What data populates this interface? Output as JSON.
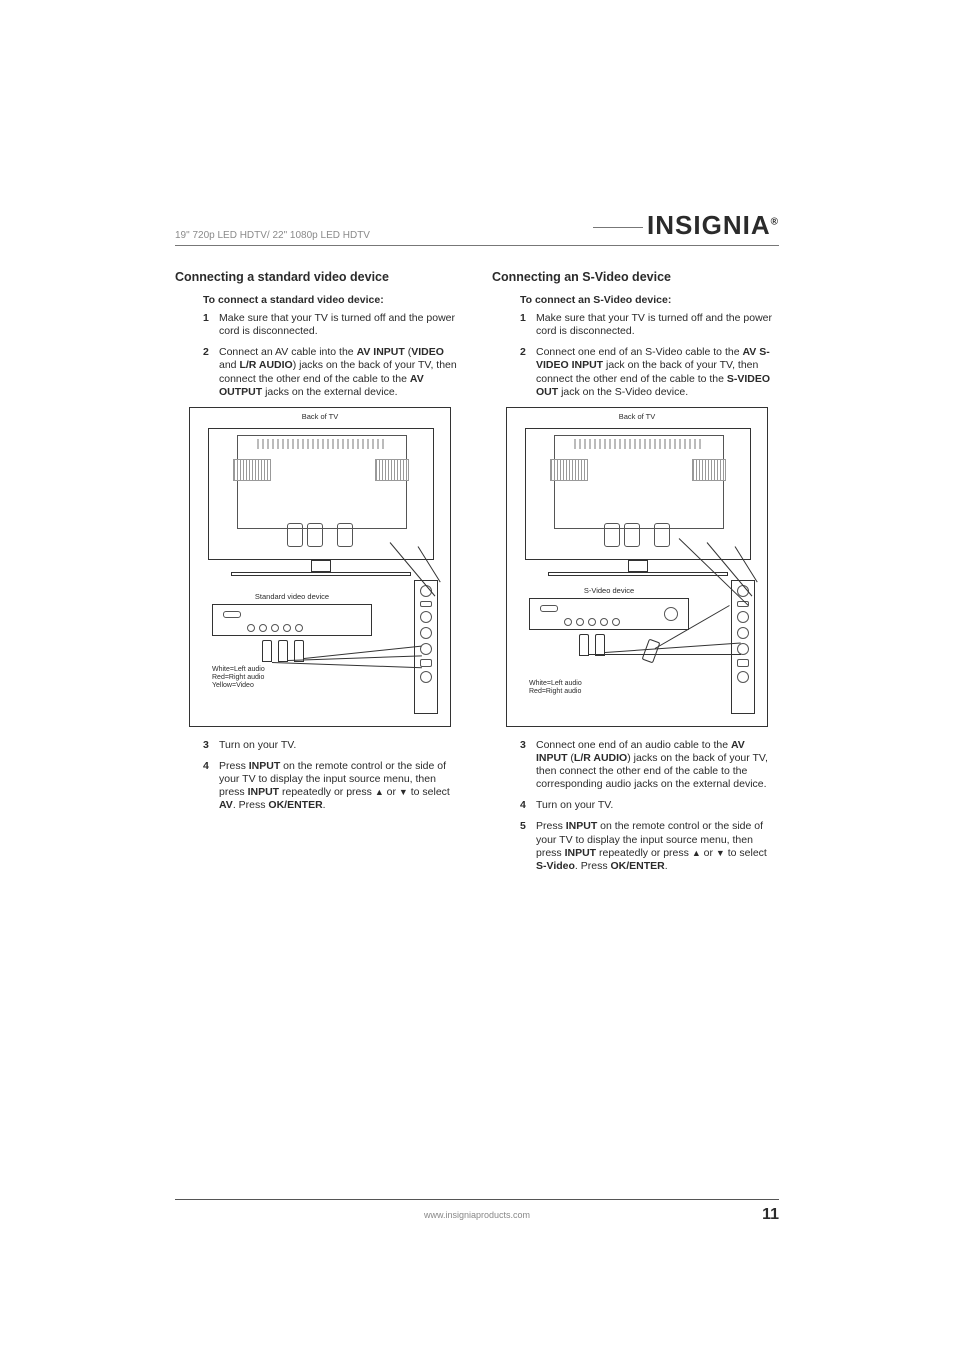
{
  "header": {
    "left": "19\" 720p LED HDTV/ 22\" 1080p LED HDTV",
    "brand": "INSIGNIA"
  },
  "left_column": {
    "title": "Connecting a standard video device",
    "subtitle": "To connect a standard video device:",
    "steps": [
      {
        "num": "1",
        "text": "Make sure that your TV is turned off and the power cord is disconnected."
      },
      {
        "num": "2",
        "parts": [
          "Connect an AV cable into the ",
          {
            "bold": "AV INPUT"
          },
          " (",
          {
            "bold": "VIDEO"
          },
          " and ",
          {
            "bold": "L/R AUDIO"
          },
          ") jacks on the back of your TV, then connect the other end of the cable to the ",
          {
            "bold": "AV OUTPUT"
          },
          " jacks on the external device."
        ]
      }
    ],
    "steps_after": [
      {
        "num": "3",
        "text": "Turn on your TV."
      },
      {
        "num": "4",
        "parts": [
          "Press ",
          {
            "bold": "INPUT"
          },
          " on the remote control or the side of your TV to display the input source menu, then press ",
          {
            "bold": "INPUT"
          },
          " repeatedly or press ",
          {
            "arrow": "▲"
          },
          " or ",
          {
            "arrow": "▼"
          },
          " to select ",
          {
            "bold": "AV"
          },
          ". Press ",
          {
            "bold": "OK/ENTER"
          },
          "."
        ]
      }
    ],
    "diagram": {
      "caption": "Back of TV",
      "device_label": "Standard video device",
      "cable_note": "White=Left audio\nRed=Right audio\nYellow=Video"
    }
  },
  "right_column": {
    "title": "Connecting an S-Video device",
    "subtitle": "To connect an S-Video device:",
    "steps": [
      {
        "num": "1",
        "text": "Make sure that your TV is turned off and the power cord is disconnected."
      },
      {
        "num": "2",
        "parts": [
          "Connect one end of an S-Video cable to the ",
          {
            "bold": "AV S-VIDEO INPUT"
          },
          " jack on the back of your TV, then connect the other end of the cable to the ",
          {
            "bold": "S-VIDEO OUT"
          },
          " jack on the S-Video device."
        ]
      }
    ],
    "steps_after": [
      {
        "num": "3",
        "parts": [
          "Connect one end of an audio cable to the ",
          {
            "bold": "AV INPUT"
          },
          " (",
          {
            "bold": "L/R AUDIO"
          },
          ") jacks on the back of your TV, then connect the other end of the cable to the corresponding audio jacks on the external device."
        ]
      },
      {
        "num": "4",
        "text": "Turn on your TV."
      },
      {
        "num": "5",
        "parts": [
          "Press ",
          {
            "bold": "INPUT"
          },
          " on the remote control or the side of your TV to display the input source menu, then press ",
          {
            "bold": "INPUT"
          },
          " repeatedly or press ",
          {
            "arrow": "▲"
          },
          " or ",
          {
            "arrow": "▼"
          },
          " to select ",
          {
            "bold": "S-Video"
          },
          ". Press ",
          {
            "bold": "OK/ENTER"
          },
          "."
        ]
      }
    ],
    "diagram": {
      "caption": "Back of TV",
      "device_label": "S-Video device",
      "cable_note": "White=Left audio\nRed=Right audio"
    }
  },
  "footer": {
    "url": "www.insigniaproducts.com",
    "page": "11"
  },
  "colors": {
    "text": "#2b2b2b",
    "muted": "#8a8a8a",
    "rule": "#777777",
    "background": "#ffffff"
  }
}
